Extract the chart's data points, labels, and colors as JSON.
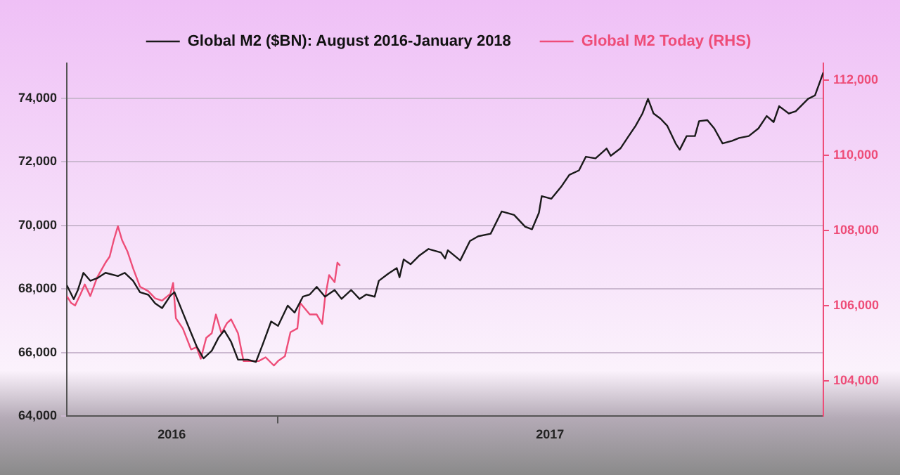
{
  "chart_data": {
    "type": "line",
    "legend": "top",
    "grid": "y",
    "xlim": [
      "2016-08-01",
      "2018-01-31"
    ],
    "xticks": [
      {
        "value": "2016-10-16",
        "label": "2016"
      },
      {
        "value": "2017-01-01",
        "label": null
      },
      {
        "value": "2017-07-17",
        "label": "2017"
      }
    ],
    "ylim": [
      64000,
      75100
    ],
    "yticks": [
      {
        "value": 64000,
        "label": "64,000"
      },
      {
        "value": 66000,
        "label": "66,000"
      },
      {
        "value": 68000,
        "label": "68,000"
      },
      {
        "value": 70000,
        "label": "70,000"
      },
      {
        "value": 72000,
        "label": "72,000"
      },
      {
        "value": 74000,
        "label": "74,000"
      }
    ],
    "y2lim": [
      103050,
      112450
    ],
    "y2ticks": [
      {
        "value": 104000,
        "label": "104,000"
      },
      {
        "value": 106000,
        "label": "106,000"
      },
      {
        "value": 108000,
        "label": "108,000"
      },
      {
        "value": 110000,
        "label": "110,000"
      },
      {
        "value": 112000,
        "label": "112,000"
      }
    ],
    "series": [
      {
        "name": "Global M2 ($BN): August 2016-January 2018",
        "color": "#1a1a1a",
        "x": [
          "2016-08-01",
          "2016-08-06",
          "2016-08-09",
          "2016-08-13",
          "2016-08-18",
          "2016-08-23",
          "2016-08-29",
          "2016-09-07",
          "2016-09-12",
          "2016-09-18",
          "2016-09-23",
          "2016-09-29",
          "2016-10-04",
          "2016-10-09",
          "2016-10-15",
          "2016-10-18",
          "2016-10-24",
          "2016-10-30",
          "2016-11-03",
          "2016-11-08",
          "2016-11-14",
          "2016-11-19",
          "2016-11-23",
          "2016-11-28",
          "2016-12-03",
          "2016-12-10",
          "2016-12-16",
          "2016-12-21",
          "2016-12-27",
          "2017-01-01",
          "2017-01-08",
          "2017-01-13",
          "2017-01-19",
          "2017-01-24",
          "2017-01-29",
          "2017-02-04",
          "2017-02-11",
          "2017-02-16",
          "2017-02-23",
          "2017-03-01",
          "2017-03-06",
          "2017-03-12",
          "2017-03-15",
          "2017-03-22",
          "2017-03-28",
          "2017-03-30",
          "2017-04-02",
          "2017-04-07",
          "2017-04-13",
          "2017-04-20",
          "2017-04-29",
          "2017-05-02",
          "2017-05-04",
          "2017-05-13",
          "2017-05-20",
          "2017-05-26",
          "2017-06-04",
          "2017-06-12",
          "2017-06-21",
          "2017-06-29",
          "2017-07-04",
          "2017-07-09",
          "2017-07-11",
          "2017-07-18",
          "2017-07-25",
          "2017-07-31",
          "2017-08-07",
          "2017-08-12",
          "2017-08-19",
          "2017-08-27",
          "2017-08-30",
          "2017-09-06",
          "2017-09-12",
          "2017-09-17",
          "2017-09-22",
          "2017-09-26",
          "2017-09-30",
          "2017-10-05",
          "2017-10-10",
          "2017-10-16",
          "2017-10-19",
          "2017-10-24",
          "2017-10-30",
          "2017-11-02",
          "2017-11-08",
          "2017-11-13",
          "2017-11-19",
          "2017-11-26",
          "2017-12-01",
          "2017-12-08",
          "2017-12-15",
          "2017-12-21",
          "2017-12-26",
          "2017-12-30",
          "2018-01-06",
          "2018-01-11",
          "2018-01-20",
          "2018-01-25",
          "2018-01-31"
        ],
        "values": [
          68120,
          67680,
          67970,
          68510,
          68260,
          68340,
          68510,
          68410,
          68510,
          68260,
          67900,
          67820,
          67550,
          67400,
          67790,
          67900,
          67260,
          66620,
          66200,
          65820,
          66060,
          66480,
          66700,
          66340,
          65780,
          65780,
          65710,
          66270,
          66980,
          66840,
          67480,
          67260,
          67760,
          67830,
          68070,
          67760,
          67970,
          67690,
          67970,
          67690,
          67830,
          67760,
          68260,
          68490,
          68660,
          68370,
          68930,
          68780,
          69040,
          69260,
          69150,
          68960,
          69220,
          68900,
          69510,
          69660,
          69740,
          70440,
          70330,
          69960,
          69880,
          70400,
          70920,
          70840,
          71210,
          71590,
          71730,
          72160,
          72110,
          72420,
          72190,
          72420,
          72810,
          73130,
          73520,
          73980,
          73520,
          73360,
          73130,
          72580,
          72380,
          72810,
          72810,
          73280,
          73310,
          73050,
          72580,
          72660,
          72750,
          72810,
          73050,
          73440,
          73250,
          73750,
          73520,
          73590,
          73980,
          74090,
          74810
        ]
      },
      {
        "name": "Global M2 Today (RHS)",
        "color": "#ee4d78",
        "axis": "y2",
        "x": [
          "2016-08-01",
          "2016-08-04",
          "2016-08-07",
          "2016-08-11",
          "2016-08-14",
          "2016-08-18",
          "2016-08-23",
          "2016-08-29",
          "2016-09-01",
          "2016-09-04",
          "2016-09-07",
          "2016-09-10",
          "2016-09-14",
          "2016-09-18",
          "2016-09-23",
          "2016-09-29",
          "2016-10-04",
          "2016-10-09",
          "2016-10-15",
          "2016-10-17",
          "2016-10-19",
          "2016-10-24",
          "2016-10-30",
          "2016-11-03",
          "2016-11-06",
          "2016-11-10",
          "2016-11-14",
          "2016-11-17",
          "2016-11-21",
          "2016-11-25",
          "2016-11-28",
          "2016-12-03",
          "2016-12-07",
          "2016-12-12",
          "2016-12-18",
          "2016-12-23",
          "2016-12-29",
          "2017-01-01",
          "2017-01-06",
          "2017-01-10",
          "2017-01-15",
          "2017-01-17",
          "2017-01-24",
          "2017-01-29",
          "2017-02-02",
          "2017-02-04",
          "2017-02-07",
          "2017-02-11",
          "2017-02-13",
          "2017-02-15"
        ],
        "values": [
          106250,
          106070,
          106000,
          106310,
          106560,
          106250,
          106750,
          107140,
          107300,
          107740,
          108110,
          107740,
          107430,
          106990,
          106500,
          106380,
          106190,
          106130,
          106310,
          106600,
          105660,
          105390,
          104830,
          104890,
          104580,
          105140,
          105260,
          105760,
          105260,
          105530,
          105630,
          105260,
          104520,
          104520,
          104520,
          104620,
          104400,
          104520,
          104650,
          105290,
          105390,
          106070,
          105760,
          105760,
          105510,
          106190,
          106810,
          106620,
          107140,
          107060
        ]
      }
    ]
  }
}
